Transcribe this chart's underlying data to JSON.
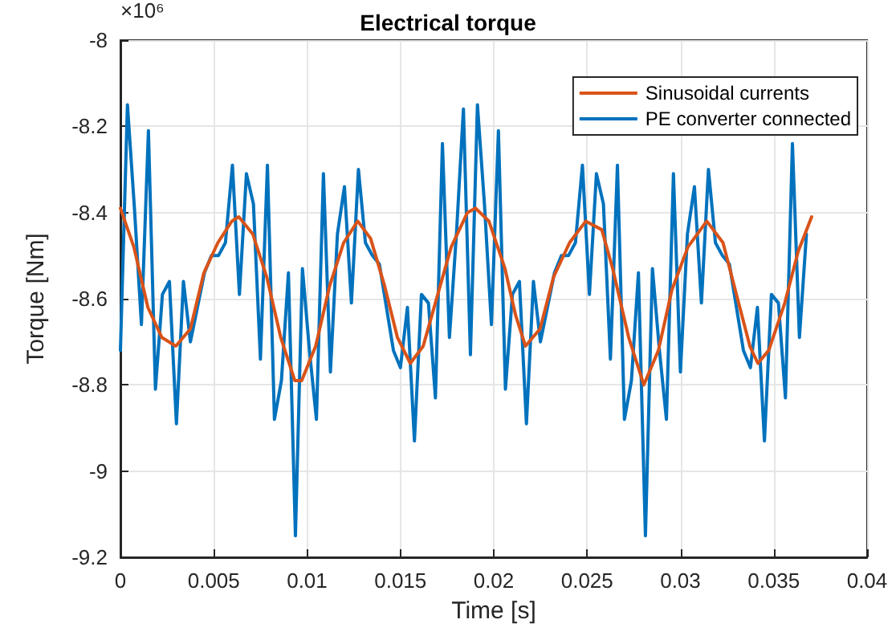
{
  "chart_data": {
    "type": "line",
    "title": "Electrical torque",
    "xlabel": "Time [s]",
    "ylabel": "Torque [Nm]",
    "annotations": [
      "×10⁶"
    ],
    "xlim": [
      0,
      0.04
    ],
    "xticks": [
      0,
      0.005,
      0.01,
      0.015,
      0.02,
      0.025,
      0.03,
      0.035,
      0.04
    ],
    "ylim": [
      -9.2,
      -8
    ],
    "yticks": [
      -9.2,
      -9,
      -8.8,
      -8.6,
      -8.4,
      -8.2,
      -8
    ],
    "grid": true,
    "legend": "top right",
    "series": [
      {
        "name": "Sinusoidal currents",
        "color": "#d95319",
        "x": [
          0,
          0.00072,
          0.00147,
          0.00222,
          0.00297,
          0.00375,
          0.00447,
          0.00522,
          0.00597,
          0.00634,
          0.00709,
          0.00784,
          0.00859,
          0.00934,
          0.00971,
          0.01046,
          0.01121,
          0.01196,
          0.01271,
          0.0134,
          0.01415,
          0.01484,
          0.01553,
          0.01622,
          0.017,
          0.01772,
          0.01859,
          0.01902,
          0.01974,
          0.0206,
          0.02118,
          0.0217,
          0.02248,
          0.0232,
          0.02406,
          0.02493,
          0.02579,
          0.02637,
          0.02723,
          0.02804,
          0.02882,
          0.02954,
          0.0304,
          0.03141,
          0.03228,
          0.033,
          0.03372,
          0.03415,
          0.03473,
          0.03559,
          0.03631,
          0.03703
        ],
        "values": [
          -8.39,
          -8.48,
          -8.62,
          -8.69,
          -8.71,
          -8.67,
          -8.54,
          -8.47,
          -8.42,
          -8.41,
          -8.45,
          -8.55,
          -8.69,
          -8.79,
          -8.79,
          -8.71,
          -8.57,
          -8.47,
          -8.42,
          -8.46,
          -8.57,
          -8.69,
          -8.75,
          -8.71,
          -8.59,
          -8.48,
          -8.4,
          -8.39,
          -8.42,
          -8.53,
          -8.64,
          -8.71,
          -8.67,
          -8.55,
          -8.47,
          -8.42,
          -8.44,
          -8.53,
          -8.69,
          -8.8,
          -8.72,
          -8.58,
          -8.48,
          -8.42,
          -8.47,
          -8.59,
          -8.71,
          -8.75,
          -8.72,
          -8.61,
          -8.49,
          -8.41
        ]
      },
      {
        "name": "PE converter connected",
        "color": "#0072bd",
        "x": [
          0,
          0.000375,
          0.00075,
          0.001125,
          0.0015,
          0.001875,
          0.00225,
          0.002625,
          0.003,
          0.003375,
          0.00375,
          0.004125,
          0.0045,
          0.004875,
          0.00525,
          0.005625,
          0.006,
          0.006375,
          0.00675,
          0.007125,
          0.0075,
          0.007875,
          0.00825,
          0.008625,
          0.009,
          0.009375,
          0.00975,
          0.010125,
          0.0105,
          0.010875,
          0.01125,
          0.011625,
          0.012,
          0.012375,
          0.01275,
          0.013125,
          0.0135,
          0.013875,
          0.01425,
          0.014625,
          0.015,
          0.015375,
          0.01575,
          0.016125,
          0.0165,
          0.016875,
          0.01725,
          0.017625,
          0.018,
          0.018375,
          0.01875,
          0.019125,
          0.0195,
          0.019875,
          0.02025,
          0.020625,
          0.021,
          0.021375,
          0.02175,
          0.022125,
          0.0225,
          0.022875,
          0.02325,
          0.023625,
          0.024,
          0.024375,
          0.02475,
          0.025125,
          0.0255,
          0.025875,
          0.02625,
          0.026625,
          0.027,
          0.027375,
          0.02775,
          0.028125,
          0.0285,
          0.028875,
          0.02925,
          0.029625,
          0.03,
          0.030375,
          0.03075,
          0.031125,
          0.0315,
          0.031875,
          0.03225,
          0.032625,
          0.033,
          0.033375,
          0.03375,
          0.034125,
          0.0345,
          0.034875,
          0.03525,
          0.035625,
          0.036,
          0.036375,
          0.03675
        ],
        "values": [
          -8.72,
          -8.15,
          -8.39,
          -8.66,
          -8.21,
          -8.81,
          -8.59,
          -8.56,
          -8.89,
          -8.56,
          -8.7,
          -8.62,
          -8.54,
          -8.5,
          -8.5,
          -8.47,
          -8.29,
          -8.59,
          -8.31,
          -8.38,
          -8.74,
          -8.29,
          -8.88,
          -8.79,
          -8.54,
          -9.15,
          -8.53,
          -8.72,
          -8.88,
          -8.31,
          -8.77,
          -8.45,
          -8.34,
          -8.61,
          -8.3,
          -8.47,
          -8.5,
          -8.52,
          -8.62,
          -8.72,
          -8.76,
          -8.62,
          -8.93,
          -8.59,
          -8.61,
          -8.83,
          -8.24,
          -8.69,
          -8.45,
          -8.16,
          -8.73,
          -8.15,
          -8.38,
          -8.66,
          -8.21,
          -8.81,
          -8.59,
          -8.56,
          -8.89,
          -8.56,
          -8.7,
          -8.62,
          -8.54,
          -8.5,
          -8.5,
          -8.47,
          -8.29,
          -8.59,
          -8.31,
          -8.38,
          -8.74,
          -8.29,
          -8.88,
          -8.79,
          -8.54,
          -9.15,
          -8.53,
          -8.72,
          -8.88,
          -8.31,
          -8.77,
          -8.45,
          -8.34,
          -8.61,
          -8.3,
          -8.47,
          -8.5,
          -8.52,
          -8.62,
          -8.72,
          -8.76,
          -8.62,
          -8.93,
          -8.59,
          -8.61,
          -8.83,
          -8.24,
          -8.69,
          -8.45
        ]
      }
    ]
  }
}
